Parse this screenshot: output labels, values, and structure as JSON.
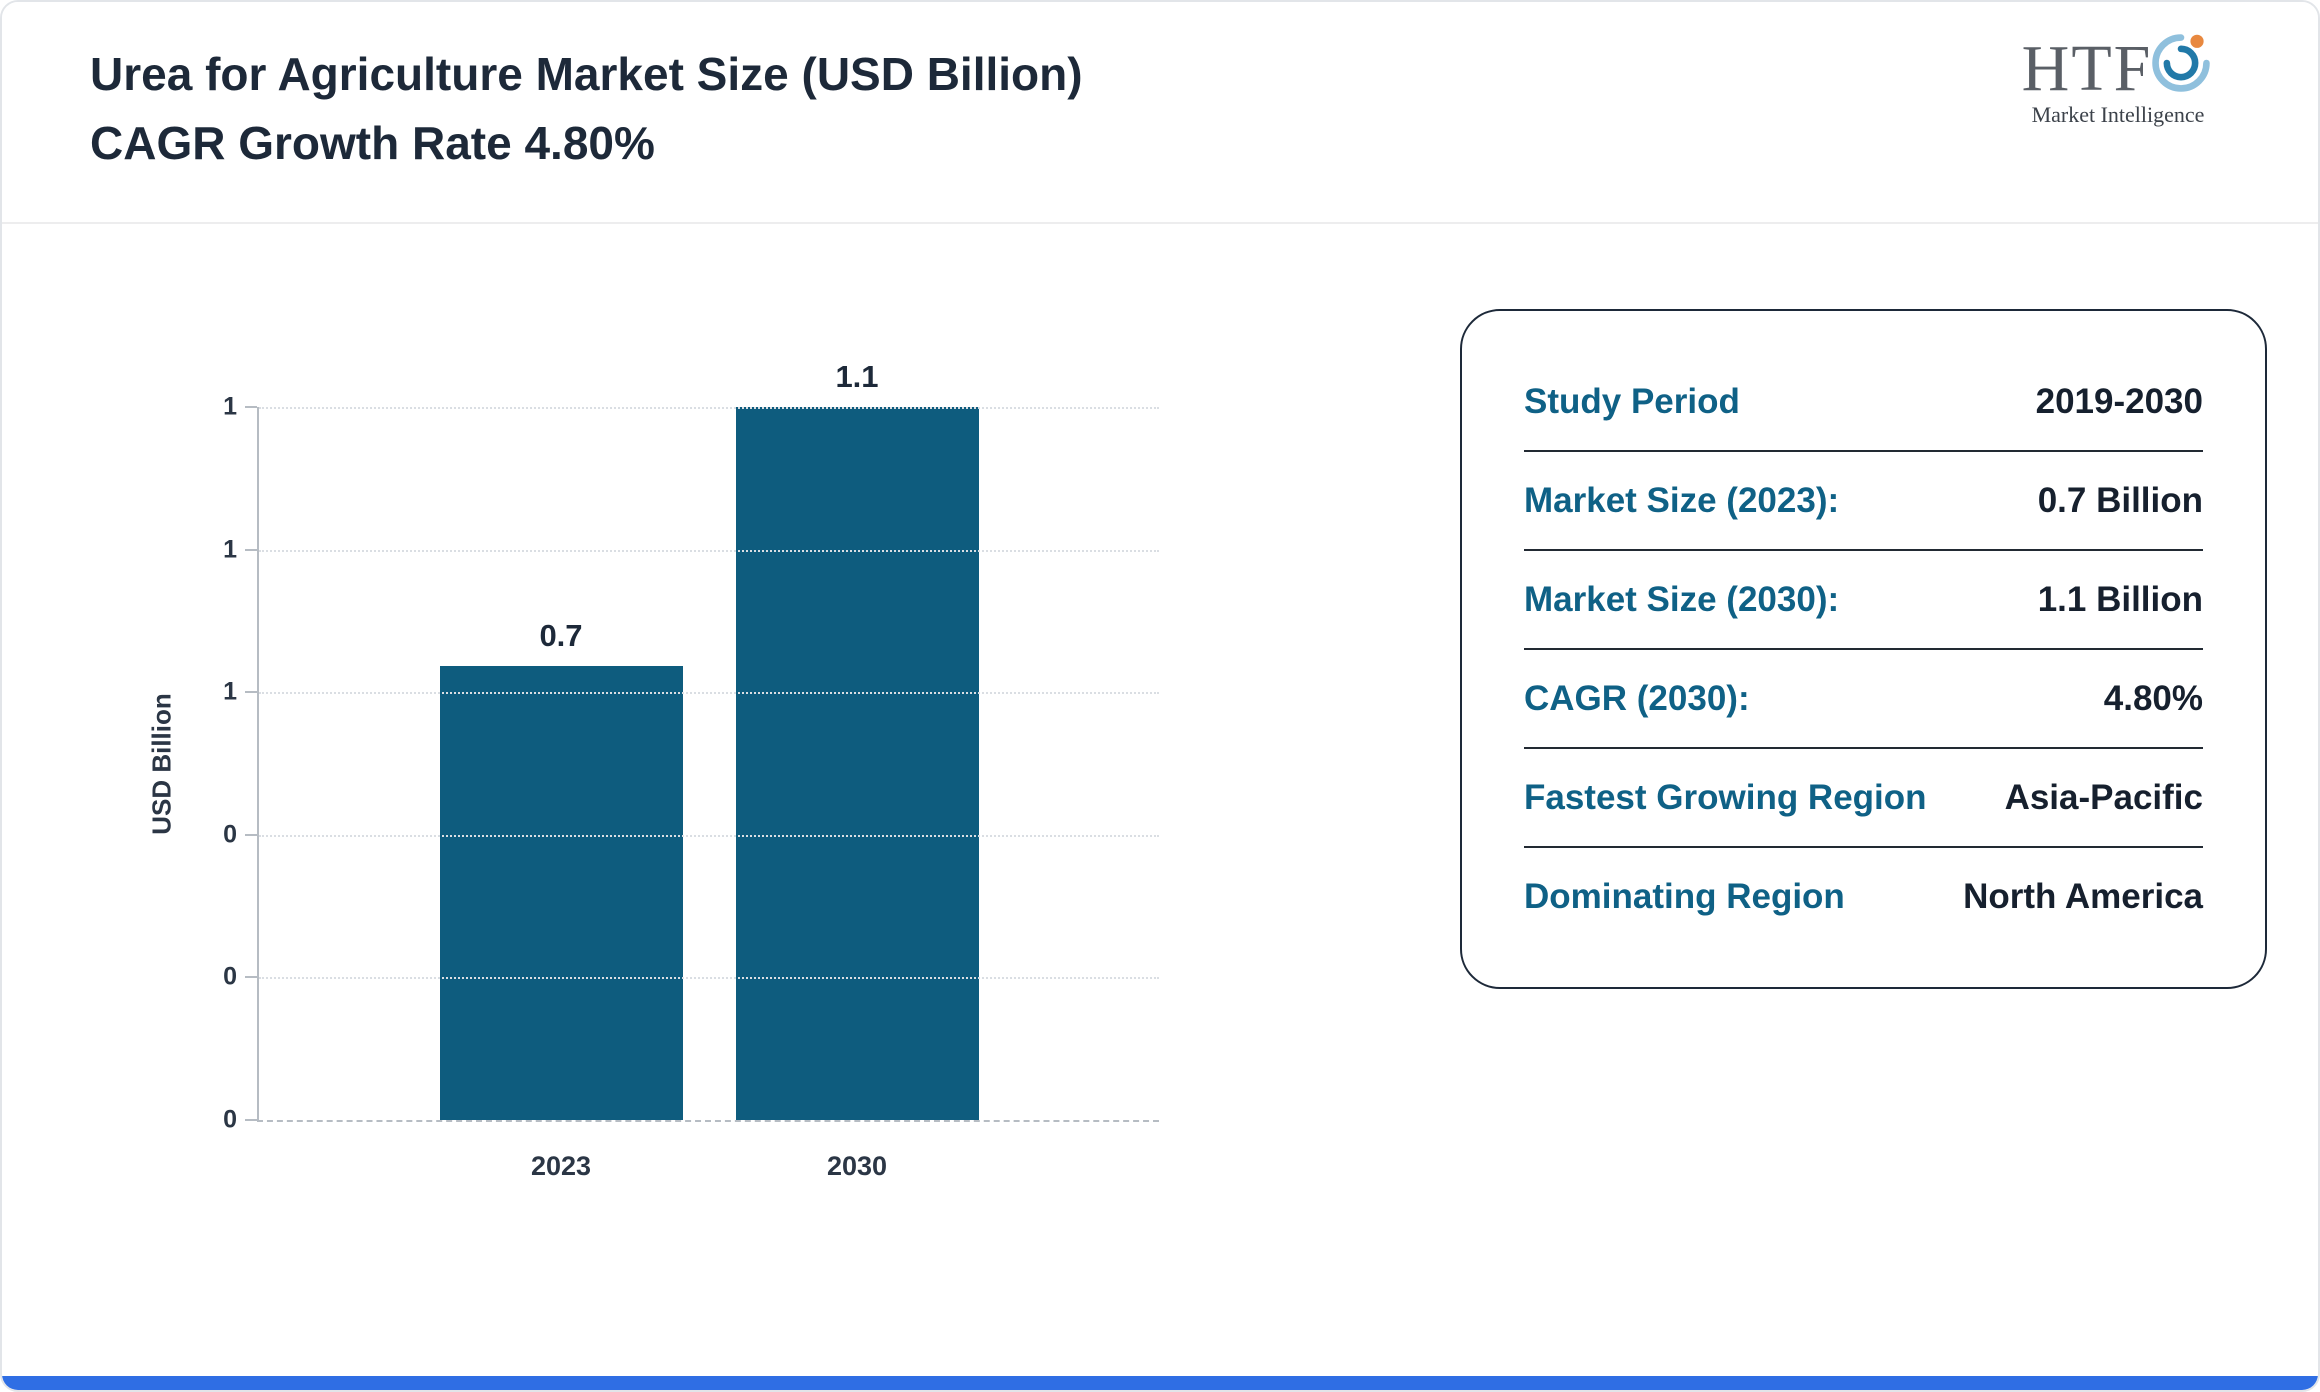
{
  "header": {
    "title_line1": "Urea for Agriculture Market Size (USD Billion)",
    "title_line2": "CAGR Growth Rate 4.80%"
  },
  "logo": {
    "name": "HTF",
    "subtitle": "Market Intelligence"
  },
  "chart_data": {
    "type": "bar",
    "categories": [
      "2023",
      "2030"
    ],
    "values": [
      0.7,
      1.1
    ],
    "bar_labels": [
      "0.7",
      "1.1"
    ],
    "title": "",
    "xlabel": "",
    "ylabel": "USD Billion",
    "ylim": [
      0,
      1.1
    ],
    "ytick_labels_bottom_to_top": [
      "0",
      "0",
      "0",
      "1",
      "1",
      "1"
    ],
    "grid": "horizontal-dotted",
    "legend": "none",
    "bar_color": "#0e5c7e"
  },
  "info_card": {
    "rows": [
      {
        "label": "Study Period",
        "value": "2019-2030"
      },
      {
        "label": "Market Size (2023):",
        "value": "0.7 Billion"
      },
      {
        "label": "Market Size (2030):",
        "value": "1.1 Billion"
      },
      {
        "label": "CAGR (2030):",
        "value": "4.80%"
      },
      {
        "label": "Fastest Growing Region",
        "value": "Asia-Pacific"
      },
      {
        "label": "Dominating Region",
        "value": "North America"
      }
    ]
  },
  "colors": {
    "bar": "#0e5c7e",
    "card_label": "#0f6186",
    "title": "#1d2939",
    "accent_bar": "#2f6ee4"
  }
}
